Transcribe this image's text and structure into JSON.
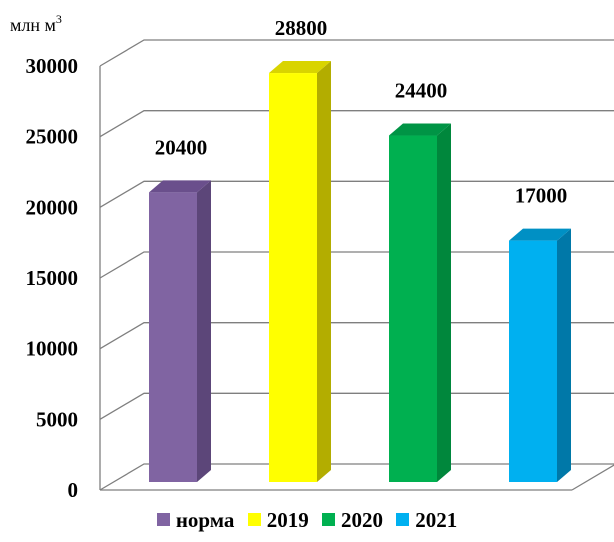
{
  "chart_data": {
    "type": "bar",
    "unit_label": "млн м",
    "unit_superscript": "3",
    "categories": [
      "норма",
      "2019",
      "2020",
      "2021"
    ],
    "values": [
      20400,
      28800,
      24400,
      17000
    ],
    "data_labels": [
      "20400",
      "28800",
      "24400",
      "17000"
    ],
    "colors": [
      "#8064a2",
      "#ffff00",
      "#00b050",
      "#00b0f0"
    ],
    "side_colors": [
      "#5c4679",
      "#b3ad00",
      "#00873c",
      "#0078a8"
    ],
    "top_colors": [
      "#6a4f8c",
      "#d9d400",
      "#009445",
      "#0090c4"
    ],
    "ylim": [
      0,
      30000
    ],
    "yticks": [
      "0",
      "5000",
      "10000",
      "15000",
      "20000",
      "25000",
      "30000"
    ],
    "ytick_values": [
      0,
      5000,
      10000,
      15000,
      20000,
      25000,
      30000
    ],
    "grid": true,
    "legend_position": "bottom",
    "title": "",
    "xlabel": "",
    "ylabel": ""
  }
}
